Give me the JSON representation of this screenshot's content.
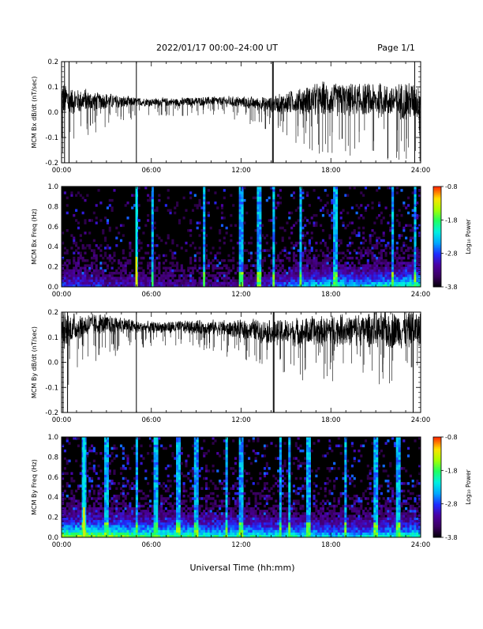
{
  "header": {
    "date_range": "2022/01/17  00:00–24:00 UT",
    "page": "Page 1/1"
  },
  "footer": {
    "xlabel": "Universal Time (hh:mm)"
  },
  "colors": {
    "trace": "#000000",
    "spectrogram_background": "#000000",
    "colormap": [
      "#000000",
      "#3a0060",
      "#4b00a0",
      "#1f2bff",
      "#00a8ff",
      "#00f0e0",
      "#20ff60",
      "#a8ff00",
      "#ffe000",
      "#ff3000"
    ]
  },
  "chart_data": [
    {
      "type": "line",
      "id": "bx_ts",
      "ylabel": "MCM Bx dB/dt (nT/sec)",
      "xticks": [
        "00:00",
        "06:00",
        "12:00",
        "18:00",
        "24:00"
      ],
      "xlim": [
        0,
        24
      ],
      "ylim": [
        -0.2,
        0.2
      ],
      "yticks": [
        "-0.2",
        "-0.1",
        "0.0",
        "0.1",
        "0.2"
      ],
      "series": [
        {
          "description_hours": [
            0,
            1,
            2,
            3,
            4,
            5,
            6,
            8,
            10,
            12,
            13,
            14,
            15,
            16,
            17,
            18,
            19,
            20,
            21,
            22,
            23,
            24
          ],
          "center": [
            0.05,
            0.045,
            0.045,
            0.045,
            0.04,
            0.04,
            0.04,
            0.04,
            0.045,
            0.04,
            0.035,
            0.03,
            0.035,
            0.045,
            0.05,
            0.05,
            0.05,
            0.045,
            0.045,
            0.045,
            0.045,
            0.045
          ],
          "amplitude": [
            0.09,
            0.06,
            0.045,
            0.035,
            0.03,
            0.02,
            0.018,
            0.02,
            0.02,
            0.025,
            0.03,
            0.035,
            0.05,
            0.06,
            0.07,
            0.08,
            0.075,
            0.07,
            0.075,
            0.08,
            0.085,
            0.09
          ]
        }
      ],
      "spikes_hours": [
        0.2,
        0.5,
        5.0,
        14.1,
        14.15,
        23.6
      ]
    },
    {
      "type": "heatmap",
      "id": "bx_spec",
      "ylabel": "MCM Bx Freq (Hz)",
      "xticks": [
        "00:00",
        "06:00",
        "12:00",
        "18:00",
        "24:00"
      ],
      "xlim": [
        0,
        24
      ],
      "ylim": [
        0,
        1.0
      ],
      "yticks": [
        "0.0",
        "0.2",
        "0.4",
        "0.6",
        "0.8",
        "1.0"
      ],
      "colorbar": {
        "label": "Log₁₀ Power",
        "ticks": [
          "-0.8",
          "-1.8",
          "-2.8",
          "-3.8"
        ],
        "range": [
          -3.8,
          -0.8
        ]
      },
      "activity_hours": [
        0,
        4,
        8,
        12,
        14,
        16,
        18,
        20,
        22,
        24
      ],
      "activity_level": [
        0.35,
        0.25,
        0.2,
        0.2,
        0.3,
        0.45,
        0.55,
        0.5,
        0.55,
        0.65
      ],
      "bright_lines_hours": [
        5.0,
        6.1,
        9.5,
        12.0,
        13.2,
        14.2,
        16.0,
        18.3,
        22.1,
        23.6
      ]
    },
    {
      "type": "line",
      "id": "by_ts",
      "ylabel": "MCM By dB/dt (nT/sec)",
      "xticks": [
        "00:00",
        "06:00",
        "12:00",
        "18:00",
        "24:00"
      ],
      "xlim": [
        0,
        24
      ],
      "ylim": [
        -0.2,
        0.2
      ],
      "yticks": [
        "-0.2",
        "-0.1",
        "0.0",
        "0.1",
        "0.2"
      ],
      "series": [
        {
          "description_hours": [
            0,
            1,
            2,
            3,
            4,
            5,
            6,
            8,
            10,
            12,
            13,
            14,
            15,
            16,
            17,
            18,
            19,
            20,
            21,
            22,
            23,
            24
          ],
          "center": [
            0.12,
            0.14,
            0.15,
            0.15,
            0.15,
            0.14,
            0.14,
            0.14,
            0.14,
            0.13,
            0.13,
            0.12,
            0.12,
            0.12,
            0.12,
            0.13,
            0.13,
            0.13,
            0.13,
            0.13,
            0.13,
            0.13
          ],
          "amplitude": [
            0.09,
            0.06,
            0.05,
            0.045,
            0.04,
            0.03,
            0.025,
            0.03,
            0.035,
            0.04,
            0.05,
            0.055,
            0.06,
            0.065,
            0.07,
            0.07,
            0.07,
            0.075,
            0.08,
            0.085,
            0.09,
            0.08
          ]
        }
      ],
      "spikes_hours": [
        0.1,
        0.4,
        5.0,
        14.15,
        14.2,
        23.5
      ]
    },
    {
      "type": "heatmap",
      "id": "by_spec",
      "ylabel": "MCM By Freq (Hz)",
      "xticks": [
        "00:00",
        "06:00",
        "12:00",
        "18:00",
        "24:00"
      ],
      "xlim": [
        0,
        24
      ],
      "ylim": [
        0,
        1.0
      ],
      "yticks": [
        "0.0",
        "0.2",
        "0.4",
        "0.6",
        "0.8",
        "1.0"
      ],
      "colorbar": {
        "label": "Log₁₀ Power",
        "ticks": [
          "-0.8",
          "-1.8",
          "-2.8",
          "-3.8"
        ],
        "range": [
          -3.8,
          -0.8
        ]
      },
      "activity_hours": [
        0,
        2,
        4,
        6,
        8,
        10,
        12,
        14,
        16,
        18,
        20,
        22,
        24
      ],
      "activity_level": [
        0.75,
        0.75,
        0.7,
        0.65,
        0.65,
        0.6,
        0.6,
        0.55,
        0.55,
        0.5,
        0.5,
        0.55,
        0.6
      ],
      "bright_lines_hours": [
        1.5,
        3.0,
        5.0,
        6.3,
        7.8,
        9.0,
        11.0,
        12.0,
        14.6,
        15.2,
        16.5,
        19.0,
        21.0,
        22.5
      ]
    }
  ]
}
